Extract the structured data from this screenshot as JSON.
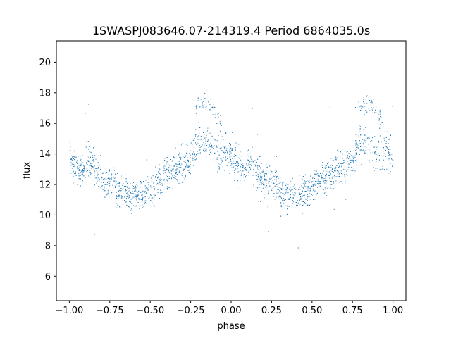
{
  "chart_data": {
    "type": "scatter",
    "title": "1SWASPJ083646.07-214319.4 Period 6864035.0s",
    "xlabel": "phase",
    "ylabel": "flux",
    "xlim": [
      -1.08,
      1.08
    ],
    "ylim": [
      4.4,
      21.4
    ],
    "xticks": [
      -1.0,
      -0.75,
      -0.5,
      -0.25,
      0.0,
      0.25,
      0.5,
      0.75,
      1.0
    ],
    "xtick_labels": [
      "−1.00",
      "−0.75",
      "−0.50",
      "−0.25",
      "0.00",
      "0.25",
      "0.50",
      "0.75",
      "1.00"
    ],
    "yticks": [
      6,
      8,
      10,
      12,
      14,
      16,
      18,
      20
    ],
    "ytick_labels": [
      "6",
      "8",
      "10",
      "12",
      "14",
      "16",
      "18",
      "20"
    ],
    "grid": false,
    "marker_color": "#1f77b4",
    "series": [
      {
        "phase_range": [
          -1.0,
          1.0
        ],
        "profile": {
          "phase": [
            0.0,
            0.02,
            0.05,
            0.08,
            0.1,
            0.13,
            0.16,
            0.2,
            0.23,
            0.27,
            0.3,
            0.35,
            0.4,
            0.45,
            0.5,
            0.55,
            0.6,
            0.65,
            0.7,
            0.75,
            0.78,
            0.8,
            0.82,
            0.85,
            0.88,
            0.9,
            0.93,
            0.96,
            1.0
          ],
          "flux": [
            13.8,
            13.5,
            13.2,
            13.0,
            13.6,
            13.5,
            12.8,
            12.3,
            12.0,
            12.4,
            11.4,
            11.5,
            11.3,
            11.4,
            11.8,
            12.3,
            12.7,
            13.0,
            13.3,
            13.6,
            14.5,
            15.0,
            14.6,
            14.8,
            14.4,
            14.2,
            14.0,
            14.2,
            13.8
          ]
        },
        "hump_phase": [
          0.78,
          0.84,
          0.9,
          0.94
        ],
        "hump_flux": [
          17.0,
          17.6,
          16.8,
          16.0
        ]
      }
    ]
  }
}
